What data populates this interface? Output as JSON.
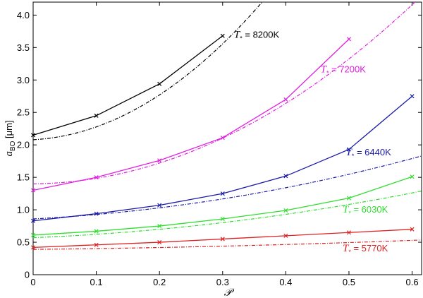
{
  "chart_data": {
    "type": "line",
    "xlabel": "𝒫",
    "ylabel_main": "a",
    "ylabel_sub": "BO",
    "ylabel_unit": " [μm]",
    "xlim": [
      0,
      0.615
    ],
    "ylim": [
      0,
      4.2
    ],
    "xticks": [
      0,
      0.1,
      0.2,
      0.3,
      0.4,
      0.5,
      0.6
    ],
    "xtick_labels": [
      "0",
      "0.1",
      "0.2",
      "0.3",
      "0.4",
      "0.5",
      "0.6"
    ],
    "yticks": [
      0,
      0.5,
      1.0,
      1.5,
      2.0,
      2.5,
      3.0,
      3.5,
      4.0
    ],
    "ytick_labels": [
      "0",
      "0.5",
      "1.0",
      "1.5",
      "2.0",
      "2.5",
      "3.0",
      "3.5",
      "4.0"
    ],
    "grid": false,
    "series": [
      {
        "name": "8200K",
        "label_prefix": "T",
        "label_sub": "*",
        "label_value": " = 8200K",
        "color": "#000000",
        "x": [
          0,
          0.1,
          0.2,
          0.3
        ],
        "y": [
          2.15,
          2.45,
          2.94,
          3.68
        ],
        "fit": [
          2.08,
          0.5,
          14.75
        ]
      },
      {
        "name": "7200K",
        "label_prefix": "T",
        "label_sub": "*",
        "label_value": " = 7200K",
        "color": "#e020e0",
        "x": [
          0,
          0.1,
          0.2,
          0.3,
          0.4,
          0.5
        ],
        "y": [
          1.3,
          1.5,
          1.76,
          2.11,
          2.7,
          3.63
        ],
        "fit": [
          1.4,
          0.1,
          7.5
        ]
      },
      {
        "name": "6440K",
        "label_prefix": "T",
        "label_sub": "*",
        "label_value": " = 6440K",
        "color": "#1a1aa8",
        "x": [
          0,
          0.1,
          0.2,
          0.3,
          0.4,
          0.5,
          0.6
        ],
        "y": [
          0.83,
          0.94,
          1.07,
          1.25,
          1.52,
          1.93,
          2.75
        ],
        "fit": [
          0.86,
          0.5,
          1.75
        ]
      },
      {
        "name": "6030K",
        "label_prefix": "T",
        "label_sub": "*",
        "label_value": " = 6030K",
        "color": "#30dd30",
        "x": [
          0,
          0.1,
          0.2,
          0.3,
          0.4,
          0.5,
          0.6
        ],
        "y": [
          0.61,
          0.67,
          0.75,
          0.86,
          0.99,
          1.18,
          1.51
        ],
        "fit": [
          0.57,
          0.4,
          1.25
        ]
      },
      {
        "name": "5770K",
        "label_prefix": "T",
        "label_sub": "*",
        "label_value": " = 5770K",
        "color": "#dd2222",
        "x": [
          0,
          0.1,
          0.2,
          0.3,
          0.4,
          0.5,
          0.6
        ],
        "y": [
          0.42,
          0.46,
          0.5,
          0.55,
          0.6,
          0.65,
          0.7
        ],
        "fit": [
          0.39,
          0.1,
          0.22
        ]
      }
    ]
  }
}
